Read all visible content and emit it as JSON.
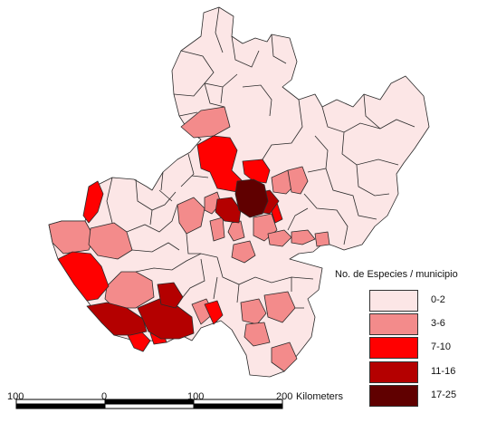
{
  "legend": {
    "title": "No. de Especies / municipio",
    "classes": [
      {
        "label": "0-2",
        "color": "#fce6e6"
      },
      {
        "label": "3-6",
        "color": "#f38b8b"
      },
      {
        "label": "7-10",
        "color": "#ff0000"
      },
      {
        "label": "11-16",
        "color": "#b40000"
      },
      {
        "label": "17-25",
        "color": "#600000"
      }
    ]
  },
  "scale_bar": {
    "labels": [
      "100",
      "0",
      "100",
      "200"
    ],
    "unit": "Kilometers"
  },
  "colors": {
    "border": "#2a2a2a",
    "background": "#ffffff"
  }
}
